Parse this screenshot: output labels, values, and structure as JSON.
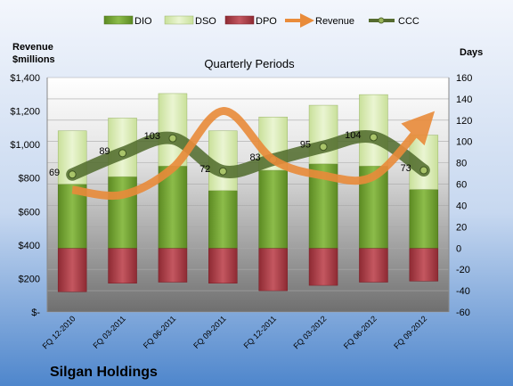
{
  "chart_data": {
    "type": "bar",
    "title": "Quarterly Periods",
    "company": "Silgan Holdings",
    "left_axis_title": [
      "Revenue",
      "$millions"
    ],
    "right_axis_title": "Days",
    "categories": [
      "FQ 12-2010",
      "FQ 03-2011",
      "FQ 06-2011",
      "FQ 09-2011",
      "FQ 12-2011",
      "FQ 03-2012",
      "FQ 06-2012",
      "FQ 09-2012"
    ],
    "left_axis": {
      "min": 0,
      "max": 1400,
      "step": 200,
      "ticks": [
        "$-",
        "$200",
        "$400",
        "$600",
        "$800",
        "$1,000",
        "$1,200",
        "$1,400"
      ]
    },
    "right_axis": {
      "min": -60,
      "max": 160,
      "step": 20,
      "ticks": [
        "-60",
        "-40",
        "-20",
        "0",
        "20",
        "40",
        "60",
        "80",
        "100",
        "120",
        "140",
        "160"
      ]
    },
    "series": [
      {
        "name": "DIO",
        "type": "bar",
        "color": "#6e9e2e",
        "values": [
          60,
          67,
          77,
          54,
          73,
          79,
          77,
          55
        ]
      },
      {
        "name": "DSO",
        "type": "bar",
        "color": "#d8eab0",
        "values": [
          50,
          55,
          68,
          56,
          50,
          55,
          67,
          51
        ]
      },
      {
        "name": "DPO",
        "type": "bar",
        "color": "#b4424a",
        "values": [
          -41,
          -33,
          -32,
          -33,
          -40,
          -35,
          -32,
          -31
        ]
      },
      {
        "name": "Revenue",
        "type": "line",
        "color": "#e98b3a",
        "values": [
          730,
          700,
          860,
          1200,
          910,
          815,
          810,
          1130
        ]
      },
      {
        "name": "CCC",
        "type": "line",
        "color": "#556b2f",
        "values": [
          69,
          89,
          103,
          72,
          83,
          95,
          104,
          73
        ]
      }
    ],
    "data_labels": [
      "69",
      "89",
      "103",
      "72",
      "83",
      "95",
      "104",
      "73"
    ]
  },
  "legend": [
    {
      "name": "DIO",
      "icon": "bar-swatch"
    },
    {
      "name": "DSO",
      "icon": "bar-swatch"
    },
    {
      "name": "DPO",
      "icon": "bar-swatch"
    },
    {
      "name": "Revenue",
      "icon": "arrow"
    },
    {
      "name": "CCC",
      "icon": "line-dot"
    }
  ],
  "colors": {
    "bg_top": "#e9eef8",
    "bg_bottom": "#4e86cc",
    "plot_bg": "#8f8f8f",
    "grid": "#b0b0b0"
  }
}
